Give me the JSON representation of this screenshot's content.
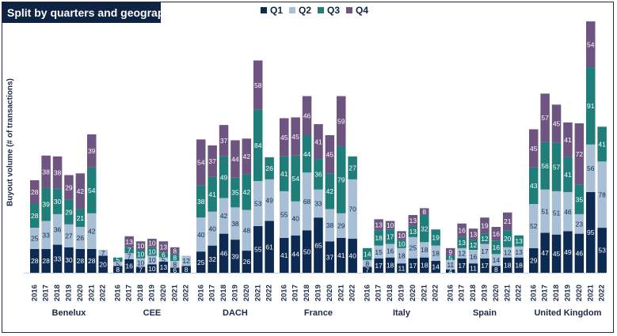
{
  "title": "Split by quarters and geography",
  "ylabel": "Buyout volume (# of transactions)",
  "chart_data": {
    "type": "bar",
    "stacked": true,
    "title": "Split by quarters and geography",
    "ylabel": "Buyout volume (# of transactions)",
    "xlabel": "",
    "legend_position": "top-center",
    "grid": false,
    "ylim": [
      0,
      270
    ],
    "series": [
      {
        "name": "Q1",
        "color": "#0d2a52"
      },
      {
        "name": "Q2",
        "color": "#a9bfd6"
      },
      {
        "name": "Q3",
        "color": "#1f7d7a"
      },
      {
        "name": "Q4",
        "color": "#6e5480"
      }
    ],
    "groups": [
      {
        "name": "Benelux",
        "years": [
          "2016",
          "2017",
          "2018",
          "2019",
          "2020",
          "2021",
          "2022"
        ],
        "values": [
          [
            28,
            25,
            28,
            28
          ],
          [
            28,
            33,
            39,
            38
          ],
          [
            33,
            36,
            30,
            38
          ],
          [
            30,
            27,
            29,
            29
          ],
          [
            28,
            26,
            21,
            42
          ],
          [
            28,
            42,
            54,
            39
          ],
          [
            20,
            7,
            null,
            null
          ]
        ]
      },
      {
        "name": "CEE",
        "years": [
          "2016",
          "2017",
          "2018",
          "2019",
          "2020",
          "2021",
          "2022"
        ],
        "values": [
          [
            8,
            5,
            5,
            null
          ],
          [
            16,
            7,
            7,
            13
          ],
          [
            7,
            10,
            10,
            10
          ],
          [
            10,
            10,
            10,
            10
          ],
          [
            13,
            5,
            6,
            13
          ],
          [
            6,
            8,
            8,
            8
          ],
          [
            8,
            12,
            null,
            null
          ]
        ]
      },
      {
        "name": "DACH",
        "years": [
          "2016",
          "2017",
          "2018",
          "2019",
          "2020",
          "2021",
          "2022"
        ],
        "values": [
          [
            25,
            40,
            38,
            54
          ],
          [
            32,
            40,
            41,
            37
          ],
          [
            46,
            42,
            49,
            37
          ],
          [
            39,
            38,
            35,
            44
          ],
          [
            26,
            48,
            42,
            42
          ],
          [
            55,
            53,
            84,
            58
          ],
          [
            61,
            49,
            26,
            null
          ]
        ]
      },
      {
        "name": "France",
        "years": [
          "2016",
          "2017",
          "2018",
          "2019",
          "2020",
          "2021",
          "2022"
        ],
        "values": [
          [
            41,
            55,
            41,
            45
          ],
          [
            44,
            40,
            54,
            45
          ],
          [
            50,
            68,
            44,
            46
          ],
          [
            65,
            33,
            36,
            41
          ],
          [
            37,
            38,
            42,
            45
          ],
          [
            41,
            29,
            79,
            59
          ],
          [
            40,
            70,
            27,
            null
          ]
        ]
      },
      {
        "name": "Italy",
        "years": [
          "2016",
          "2017",
          "2018",
          "2019",
          "2020",
          "2021",
          "2022"
        ],
        "values": [
          [
            7,
            8,
            14,
            null
          ],
          [
            17,
            15,
            18,
            13
          ],
          [
            18,
            16,
            17,
            10
          ],
          [
            11,
            18,
            10,
            10
          ],
          [
            17,
            25,
            13,
            13
          ],
          [
            18,
            18,
            32,
            8
          ],
          [
            14,
            18,
            19,
            null
          ]
        ]
      },
      {
        "name": "Spain",
        "years": [
          "2016",
          "2017",
          "2018",
          "2019",
          "2020",
          "2021",
          "2022"
        ],
        "values": [
          [
            4,
            11,
            5,
            9
          ],
          [
            17,
            12,
            13,
            16
          ],
          [
            11,
            16,
            12,
            13
          ],
          [
            17,
            17,
            12,
            19
          ],
          [
            8,
            14,
            16,
            16
          ],
          [
            18,
            12,
            20,
            21
          ],
          [
            18,
            13,
            13,
            null
          ]
        ]
      },
      {
        "name": "United Kingdom",
        "years": [
          "2016",
          "2017",
          "2018",
          "2019",
          "2020",
          "2021",
          "2022"
        ],
        "values": [
          [
            29,
            52,
            43,
            45
          ],
          [
            47,
            51,
            56,
            57
          ],
          [
            45,
            51,
            57,
            45
          ],
          [
            49,
            46,
            41,
            41
          ],
          [
            46,
            23,
            35,
            72
          ],
          [
            95,
            56,
            91,
            54
          ],
          [
            53,
            78,
            41,
            null
          ]
        ]
      }
    ]
  }
}
